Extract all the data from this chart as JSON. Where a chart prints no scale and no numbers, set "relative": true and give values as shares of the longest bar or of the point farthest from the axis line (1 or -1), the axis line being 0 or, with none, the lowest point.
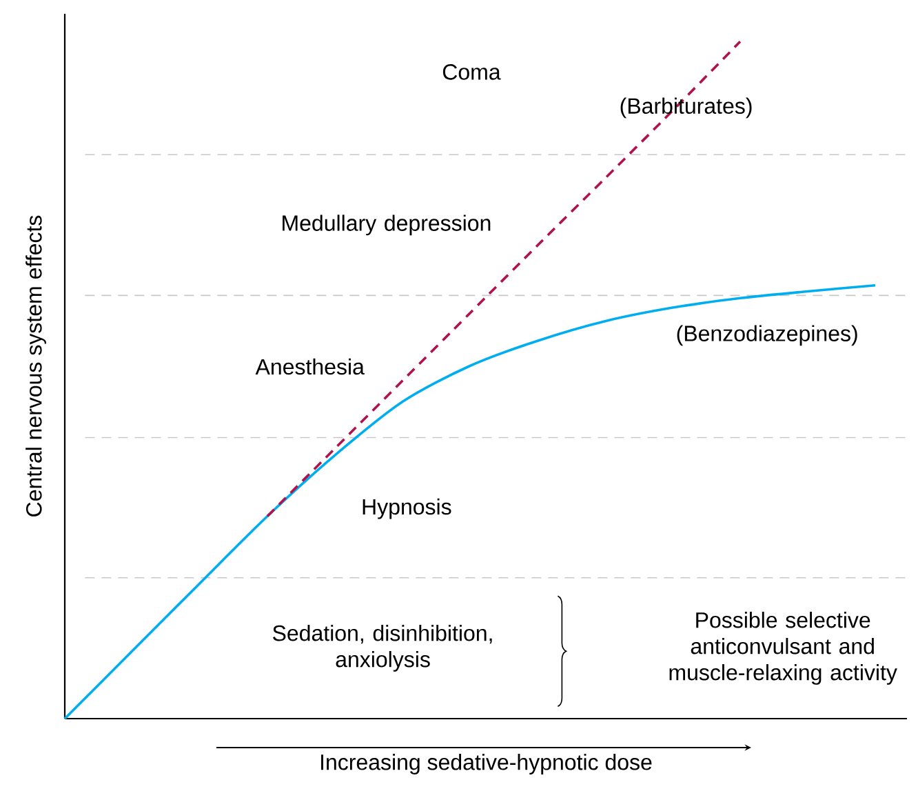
{
  "chart_data": {
    "type": "line",
    "relative": true,
    "ylabel": "Central nervous system effects",
    "xlabel": "Increasing sedative-hypnotic dose",
    "categories": [
      null,
      null,
      null,
      null,
      null,
      null,
      null,
      null,
      null,
      null,
      null,
      null,
      null
    ],
    "series": [
      {
        "name": "(Barbiturates)",
        "color": "#b0124c",
        "line_style": "dashed",
        "values": [
          null,
          null,
          null,
          0.299,
          0.399,
          0.499,
          0.599,
          0.699,
          0.798,
          0.898,
          1.0,
          null,
          null
        ]
      },
      {
        "name": "(Benzodiazepines)",
        "color": "#00aeef",
        "line_style": "solid",
        "values": [
          0,
          0.1,
          0.2,
          0.299,
          0.389,
          0.468,
          0.521,
          0.558,
          0.587,
          0.607,
          0.621,
          0.631,
          0.64
        ]
      }
    ],
    "ref_lines": [
      {
        "axis": "y",
        "value": 0.208,
        "color": "#c8c8c8",
        "line_style": "dashed"
      },
      {
        "axis": "y",
        "value": 0.415,
        "color": "#c8c8c8",
        "line_style": "dashed"
      },
      {
        "axis": "y",
        "value": 0.625,
        "color": "#c8c8c8",
        "line_style": "dashed"
      },
      {
        "axis": "y",
        "value": 0.833,
        "color": "#c8c8c8",
        "line_style": "dashed"
      }
    ],
    "annotations": [
      "Sedation, disinhibition, anxiolysis",
      "Hypnosis",
      "Anesthesia",
      "Medullary depression",
      "Coma",
      "Possible selective anticonvulsant and muscle-relaxing activity"
    ]
  }
}
